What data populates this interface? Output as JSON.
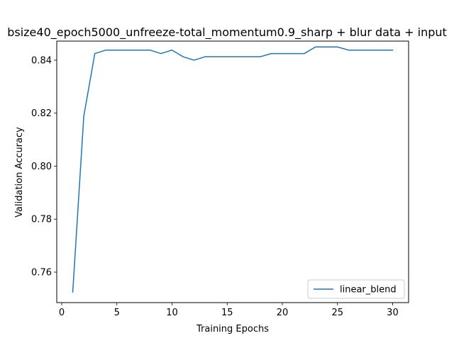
{
  "chart_data": {
    "type": "line",
    "title": "bsize40_epoch5000_unfreeze-total_momentum0.9_sharp + blur data + input",
    "xlabel": "Training Epochs",
    "ylabel": "Validation Accuracy",
    "xlim": [
      -0.45,
      31.45
    ],
    "ylim": [
      0.7485,
      0.8472
    ],
    "xticks": [
      0,
      5,
      10,
      15,
      20,
      25,
      30
    ],
    "xtick_labels": [
      "0",
      "5",
      "10",
      "15",
      "20",
      "25",
      "30"
    ],
    "yticks": [
      0.76,
      0.78,
      0.8,
      0.82,
      0.84
    ],
    "ytick_labels": [
      "0.76",
      "0.78",
      "0.80",
      "0.82",
      "0.84"
    ],
    "grid": false,
    "legend_position": "lower right",
    "series": [
      {
        "name": "linear_blend",
        "color": "#1f77b4",
        "x": [
          1,
          2,
          3,
          4,
          5,
          6,
          7,
          8,
          9,
          10,
          11,
          12,
          13,
          14,
          15,
          16,
          17,
          18,
          19,
          20,
          21,
          22,
          23,
          24,
          25,
          26,
          27,
          28,
          29,
          30
        ],
        "y": [
          0.7525,
          0.8188,
          0.8425,
          0.8438,
          0.8438,
          0.8438,
          0.8438,
          0.8438,
          0.8425,
          0.8438,
          0.8413,
          0.84,
          0.8413,
          0.8413,
          0.8413,
          0.8413,
          0.8413,
          0.8413,
          0.8425,
          0.8425,
          0.8425,
          0.8425,
          0.845,
          0.845,
          0.845,
          0.8438,
          0.8438,
          0.8438,
          0.8438,
          0.8438
        ]
      }
    ]
  }
}
